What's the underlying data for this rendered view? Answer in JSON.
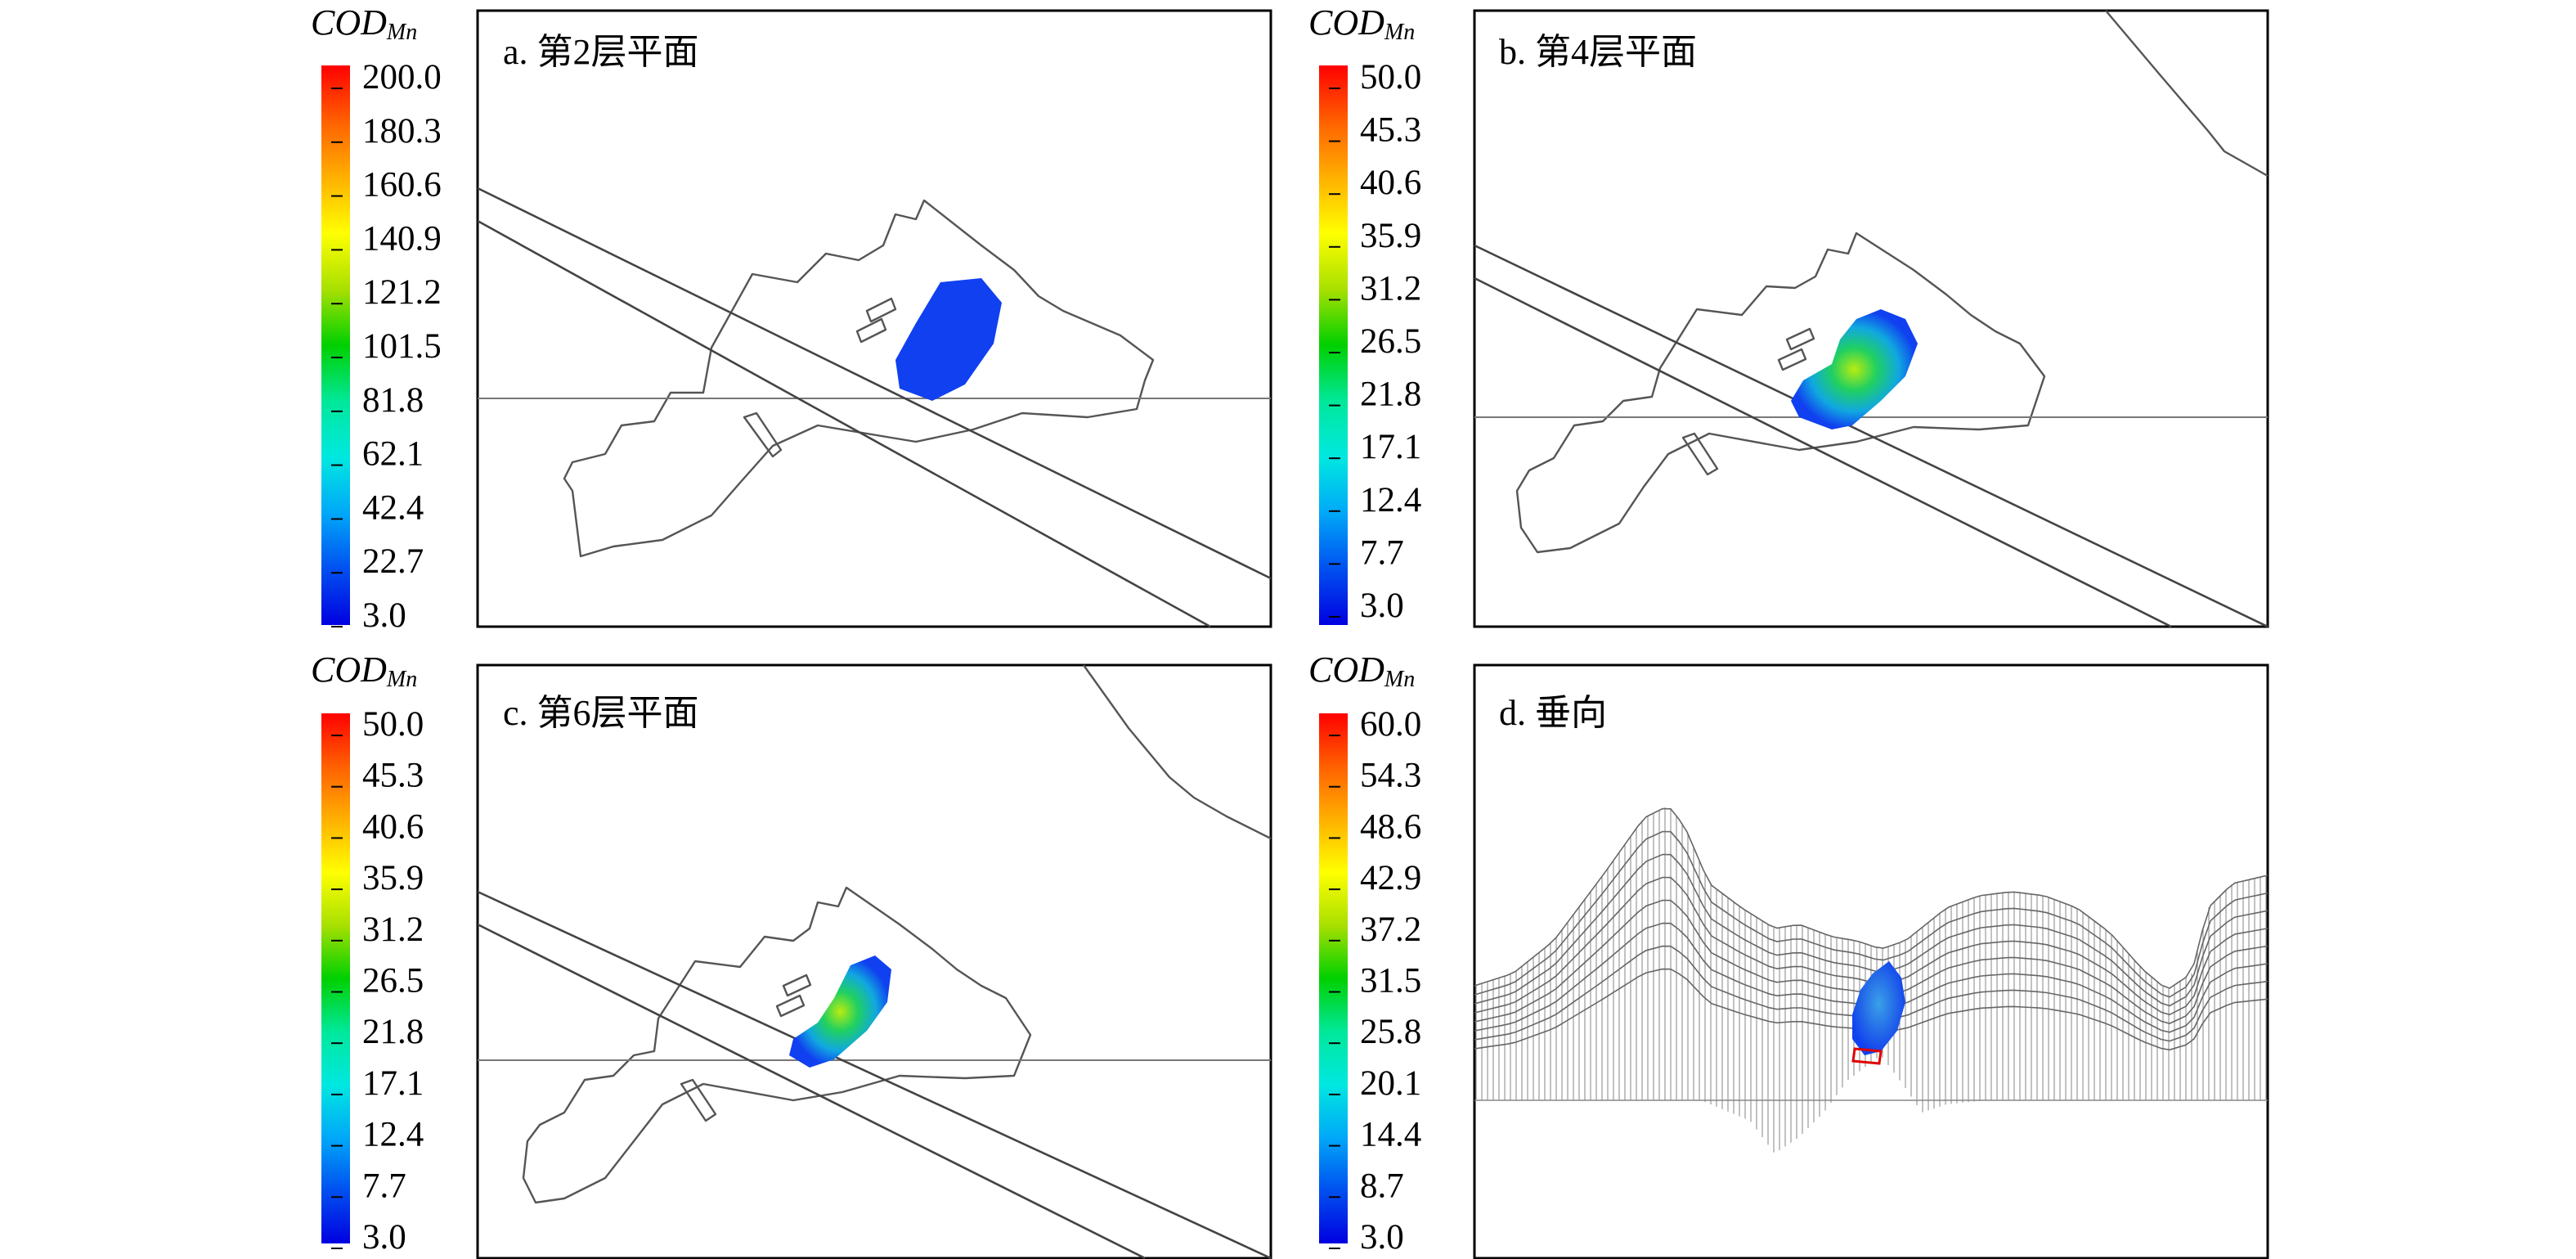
{
  "panels": [
    {
      "id": "a",
      "title": "a. 第2层平面",
      "legend_title_main": "COD",
      "legend_title_sub": "Mn",
      "legend_values": [
        "200.0",
        "180.3",
        "160.6",
        "140.9",
        "121.2",
        "101.5",
        "81.8",
        "62.1",
        "42.4",
        "22.7",
        "3.0"
      ]
    },
    {
      "id": "b",
      "title": "b. 第4层平面",
      "legend_title_main": "COD",
      "legend_title_sub": "Mn",
      "legend_values": [
        "50.0",
        "45.3",
        "40.6",
        "35.9",
        "31.2",
        "26.5",
        "21.8",
        "17.1",
        "12.4",
        "7.7",
        "3.0"
      ]
    },
    {
      "id": "c",
      "title": "c. 第6层平面",
      "legend_title_main": "COD",
      "legend_title_sub": "Mn",
      "legend_values": [
        "50.0",
        "45.3",
        "40.6",
        "35.9",
        "31.2",
        "26.5",
        "21.8",
        "17.1",
        "12.4",
        "7.7",
        "3.0"
      ]
    },
    {
      "id": "d",
      "title": "d. 垂向",
      "legend_title_main": "COD",
      "legend_title_sub": "Mn",
      "legend_values": [
        "60.0",
        "54.3",
        "48.6",
        "42.9",
        "37.2",
        "31.5",
        "25.8",
        "20.1",
        "14.4",
        "8.7",
        "3.0"
      ]
    }
  ],
  "colors": {
    "scale": [
      "#0000e0",
      "#0050f0",
      "#00a8f8",
      "#00e8e0",
      "#00e89a",
      "#00d000",
      "#a8e000",
      "#ffff00",
      "#ffb000",
      "#ff6000",
      "#ff0000"
    ],
    "plume_low": "#1040f0",
    "frame": "#000000",
    "outline": "#555555"
  }
}
